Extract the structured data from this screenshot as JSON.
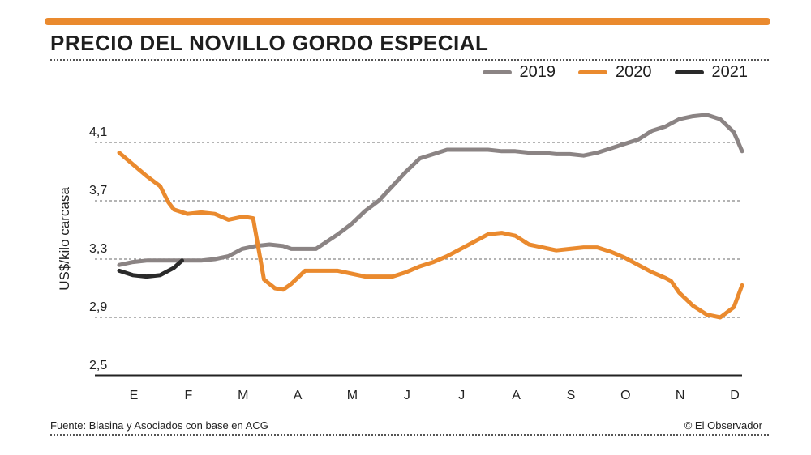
{
  "header": {
    "title": "PRECIO DEL NOVILLO GORDO ESPECIAL"
  },
  "footer": {
    "source": "Fuente: Blasina y Asociados con base en ACG",
    "credit": "© El Observador"
  },
  "colors": {
    "accent": "#ea8a2e",
    "s2019": "#8b8484",
    "s2020": "#ea8a2e",
    "s2021": "#2a2a2a",
    "grid": "#888888",
    "axis": "#222222"
  },
  "chart_data": {
    "type": "line",
    "title": "PRECIO DEL NOVILLO GORDO ESPECIAL",
    "xlabel": "",
    "ylabel": "US$/kilo carcasa",
    "ylim": [
      2.5,
      4.3
    ],
    "yticks": [
      2.5,
      2.9,
      3.3,
      3.7,
      4.1
    ],
    "ytick_labels": [
      "2,5",
      "2,9",
      "3,3",
      "3,7",
      "4,1"
    ],
    "xlim": [
      0,
      11.4
    ],
    "categories": [
      "E",
      "F",
      "M",
      "A",
      "M",
      "J",
      "J",
      "A",
      "S",
      "O",
      "N",
      "D"
    ],
    "grid": true,
    "legend": "top-right",
    "series": [
      {
        "name": "2019",
        "x": [
          0,
          0.25,
          0.5,
          0.75,
          1,
          1.25,
          1.5,
          1.75,
          2,
          2.25,
          2.5,
          2.75,
          3,
          3.15,
          3.4,
          3.6,
          3.8,
          4,
          4.25,
          4.5,
          4.75,
          5,
          5.25,
          5.5,
          5.75,
          6,
          6.25,
          6.5,
          6.75,
          7,
          7.25,
          7.5,
          7.75,
          8,
          8.25,
          8.5,
          8.75,
          9,
          9.25,
          9.5,
          9.75,
          10,
          10.1,
          10.25,
          10.5,
          10.75,
          11,
          11.25,
          11.4
        ],
        "values": [
          3.26,
          3.28,
          3.29,
          3.29,
          3.29,
          3.29,
          3.29,
          3.3,
          3.32,
          3.37,
          3.39,
          3.4,
          3.39,
          3.37,
          3.37,
          3.37,
          3.42,
          3.47,
          3.54,
          3.63,
          3.7,
          3.8,
          3.9,
          3.99,
          4.02,
          4.05,
          4.05,
          4.05,
          4.05,
          4.04,
          4.04,
          4.03,
          4.03,
          4.02,
          4.02,
          4.01,
          4.03,
          4.06,
          4.09,
          4.12,
          4.18,
          4.21,
          4.23,
          4.26,
          4.28,
          4.29,
          4.26,
          4.17,
          4.04
        ]
      },
      {
        "name": "2020",
        "x": [
          0,
          0.25,
          0.5,
          0.75,
          0.9,
          1,
          1.25,
          1.5,
          1.75,
          2,
          2.25,
          2.3,
          2.45,
          2.65,
          2.85,
          3,
          3.15,
          3.4,
          3.6,
          3.8,
          4,
          4.25,
          4.5,
          4.75,
          5,
          5.25,
          5.5,
          5.75,
          6,
          6.25,
          6.5,
          6.75,
          7,
          7.25,
          7.5,
          7.75,
          8,
          8.25,
          8.5,
          8.75,
          9,
          9.25,
          9.5,
          9.75,
          10,
          10.1,
          10.25,
          10.5,
          10.75,
          11,
          11.25,
          11.4
        ],
        "values": [
          4.03,
          3.95,
          3.87,
          3.8,
          3.69,
          3.64,
          3.61,
          3.62,
          3.61,
          3.57,
          3.59,
          3.59,
          3.58,
          3.16,
          3.1,
          3.09,
          3.13,
          3.22,
          3.22,
          3.22,
          3.22,
          3.2,
          3.18,
          3.18,
          3.18,
          3.21,
          3.25,
          3.28,
          3.32,
          3.37,
          3.42,
          3.47,
          3.48,
          3.46,
          3.4,
          3.38,
          3.36,
          3.37,
          3.38,
          3.38,
          3.35,
          3.31,
          3.26,
          3.21,
          3.17,
          3.15,
          3.07,
          2.98,
          2.92,
          2.9,
          2.97,
          3.12
        ]
      },
      {
        "name": "2021",
        "x": [
          0,
          0.25,
          0.5,
          0.75,
          1,
          1.15
        ],
        "values": [
          3.22,
          3.19,
          3.18,
          3.19,
          3.24,
          3.29
        ]
      }
    ]
  }
}
